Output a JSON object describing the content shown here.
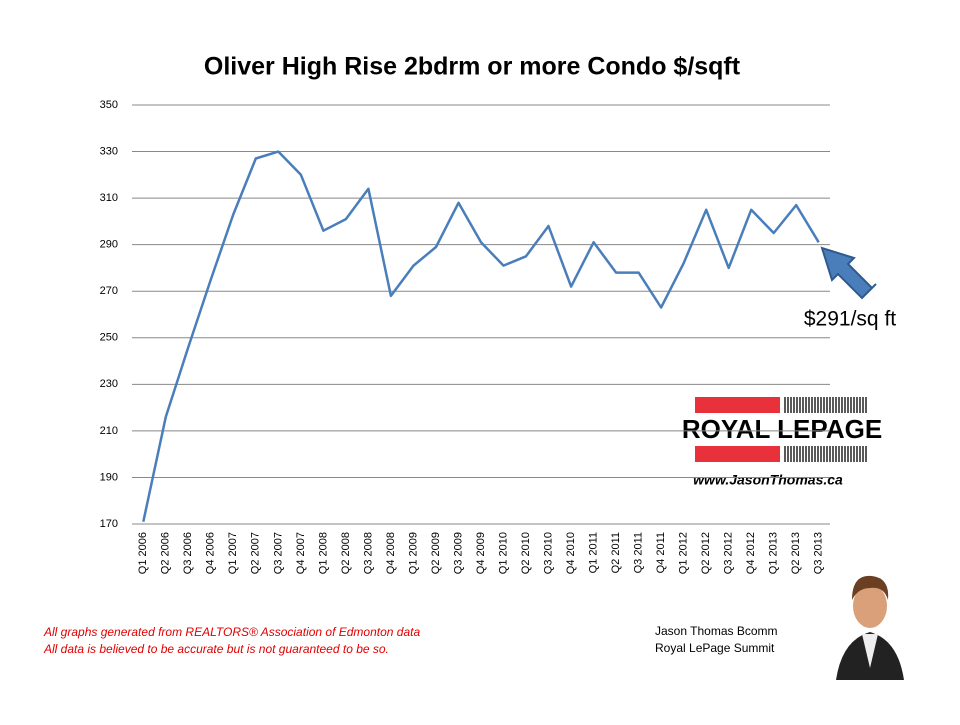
{
  "chart_data": {
    "type": "line",
    "title": "Oliver High Rise 2bdrm or more Condo $/sqft",
    "categories": [
      "Q1 2006",
      "Q2 2006",
      "Q3 2006",
      "Q4 2006",
      "Q1 2007",
      "Q2 2007",
      "Q3 2007",
      "Q4 2007",
      "Q1 2008",
      "Q2 2008",
      "Q3 2008",
      "Q4 2008",
      "Q1 2009",
      "Q2 2009",
      "Q3 2009",
      "Q4 2009",
      "Q1 2010",
      "Q2 2010",
      "Q3 2010",
      "Q4 2010",
      "Q1 2011",
      "Q2 2011",
      "Q3 2011",
      "Q4 2011",
      "Q1 2012",
      "Q2 2012",
      "Q3 2012",
      "Q4 2012",
      "Q1 2013",
      "Q2 2013",
      "Q3 2013"
    ],
    "values": [
      171,
      216,
      246,
      275,
      303,
      327,
      330,
      320,
      296,
      301,
      314,
      268,
      281,
      289,
      308,
      291,
      281,
      285,
      298,
      272,
      291,
      278,
      278,
      263,
      282,
      305,
      280,
      305,
      295,
      307,
      291
    ],
    "color": "#4a7ebb",
    "ylim": [
      170,
      350
    ],
    "yticks": [
      170,
      190,
      210,
      230,
      250,
      270,
      290,
      310,
      330,
      350
    ],
    "grid": true,
    "annotation": "$291/sq ft"
  },
  "footnotes": [
    "All graphs generated from REALTORS® Association of Edmonton data",
    "All data is believed to be accurate but is not guaranteed to be so."
  ],
  "signature": [
    "Jason Thomas Bcomm",
    "Royal LePage Summit"
  ],
  "logo": {
    "brand": "ROYAL LEPAGE",
    "website": "www.JasonThomas.ca"
  }
}
